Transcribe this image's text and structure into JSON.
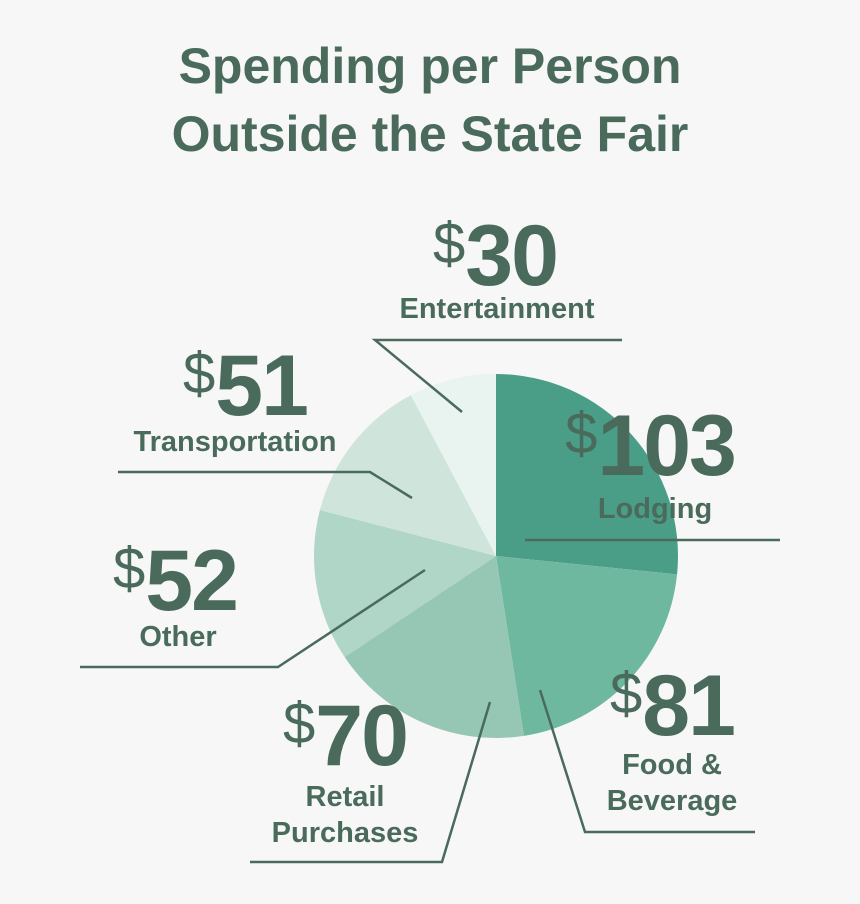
{
  "chart_data": {
    "type": "pie",
    "title": "Spending per Person Outside the State Fair",
    "categories": [
      "Lodging",
      "Food & Beverage",
      "Retail Purchases",
      "Other",
      "Transportation",
      "Entertainment"
    ],
    "values": [
      103,
      81,
      70,
      52,
      51,
      30
    ],
    "value_labels": [
      "$103",
      "$81",
      "$70",
      "$52",
      "$51",
      "$30"
    ],
    "colors": [
      "#4a9e87",
      "#6fb8a0",
      "#96c7b5",
      "#b0d6c7",
      "#cfe5dc",
      "#e9f3ef"
    ]
  }
}
